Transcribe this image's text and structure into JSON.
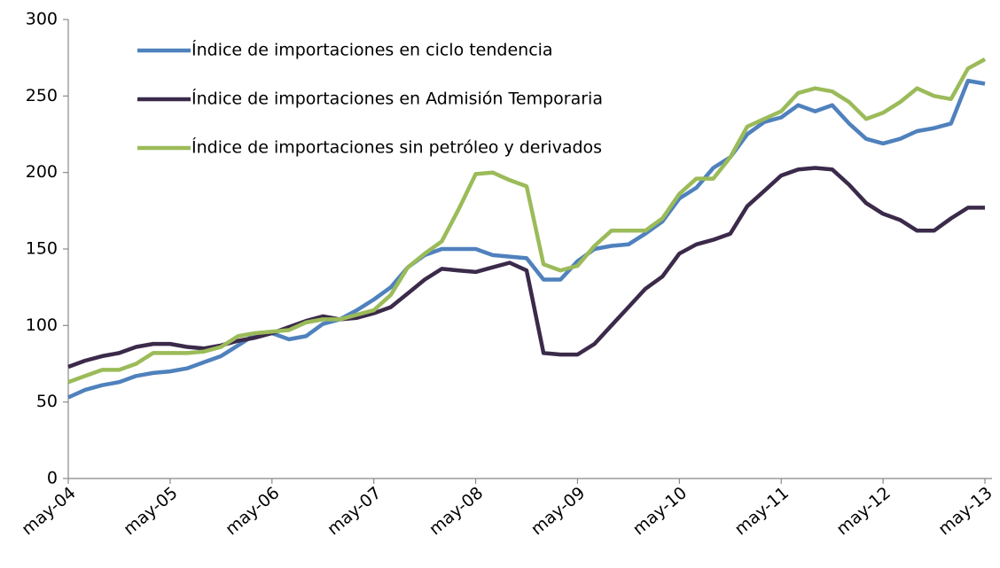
{
  "chart_data": {
    "type": "line",
    "categories": [
      "may-04",
      null,
      null,
      null,
      null,
      null,
      "may-05",
      null,
      null,
      null,
      null,
      null,
      "may-06",
      null,
      null,
      null,
      null,
      null,
      "may-07",
      null,
      null,
      null,
      null,
      null,
      "may-08",
      null,
      null,
      null,
      null,
      null,
      "may-09",
      null,
      null,
      null,
      null,
      null,
      "may-10",
      null,
      null,
      null,
      null,
      null,
      "may-11",
      null,
      null,
      null,
      null,
      null,
      "may-12",
      null,
      null,
      null,
      null,
      null,
      "may-13"
    ],
    "series": [
      {
        "name": "Índice de importaciones en ciclo tendencia",
        "color": "#4f81bd",
        "values": [
          53,
          58,
          61,
          63,
          67,
          69,
          70,
          72,
          76,
          80,
          87,
          94,
          95,
          91,
          93,
          101,
          104,
          110,
          117,
          125,
          138,
          146,
          150,
          150,
          150,
          146,
          145,
          144,
          130,
          130,
          142,
          150,
          152,
          153,
          160,
          168,
          183,
          190,
          203,
          210,
          225,
          233,
          236,
          244,
          240,
          244,
          232,
          222,
          219,
          222,
          227,
          229,
          232,
          260,
          258
        ]
      },
      {
        "name": "Índice de importaciones en Admisión Temporaria",
        "color": "#3b2a4a",
        "values": [
          73,
          77,
          80,
          82,
          86,
          88,
          88,
          86,
          85,
          87,
          90,
          92,
          95,
          99,
          103,
          106,
          104,
          105,
          108,
          112,
          121,
          130,
          137,
          136,
          135,
          138,
          141,
          136,
          82,
          81,
          81,
          88,
          100,
          112,
          124,
          132,
          147,
          153,
          156,
          160,
          178,
          188,
          198,
          202,
          203,
          202,
          192,
          180,
          173,
          169,
          162,
          162,
          170,
          177,
          177
        ]
      },
      {
        "name": "Índice de importaciones sin petróleo y derivados",
        "color": "#9bbb59",
        "values": [
          63,
          67,
          71,
          71,
          75,
          82,
          82,
          82,
          83,
          86,
          93,
          95,
          96,
          97,
          102,
          104,
          104,
          107,
          110,
          120,
          138,
          147,
          155,
          176,
          199,
          200,
          195,
          191,
          140,
          136,
          139,
          152,
          162,
          162,
          162,
          170,
          186,
          196,
          196,
          210,
          230,
          235,
          240,
          252,
          255,
          253,
          246,
          235,
          239,
          246,
          255,
          250,
          248,
          268,
          274
        ]
      }
    ],
    "ylim": [
      0,
      300
    ],
    "yticks": [
      0,
      50,
      100,
      150,
      200,
      250,
      300
    ]
  }
}
